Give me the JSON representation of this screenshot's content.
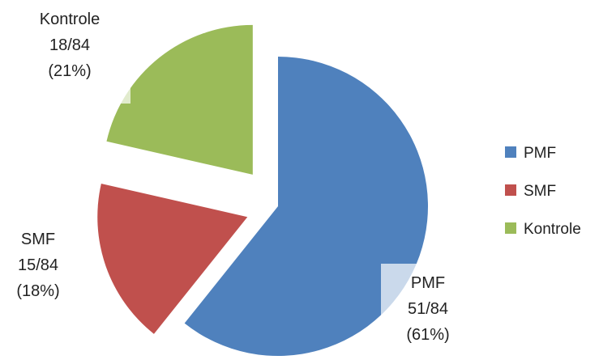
{
  "chart_data": {
    "type": "pie",
    "exploded": true,
    "legend_position": "right",
    "slices": [
      {
        "name": "PMF",
        "value": 51,
        "total": 84,
        "fraction": "51/84",
        "percent": "(61%)",
        "color": "#4F81BD"
      },
      {
        "name": "SMF",
        "value": 15,
        "total": 84,
        "fraction": "15/84",
        "percent": "(18%)",
        "color": "#C0504D"
      },
      {
        "name": "Kontrole",
        "value": 18,
        "total": 84,
        "fraction": "18/84",
        "percent": "(21%)",
        "color": "#9BBB59"
      }
    ],
    "legend": [
      "PMF",
      "SMF",
      "Kontrole"
    ]
  }
}
